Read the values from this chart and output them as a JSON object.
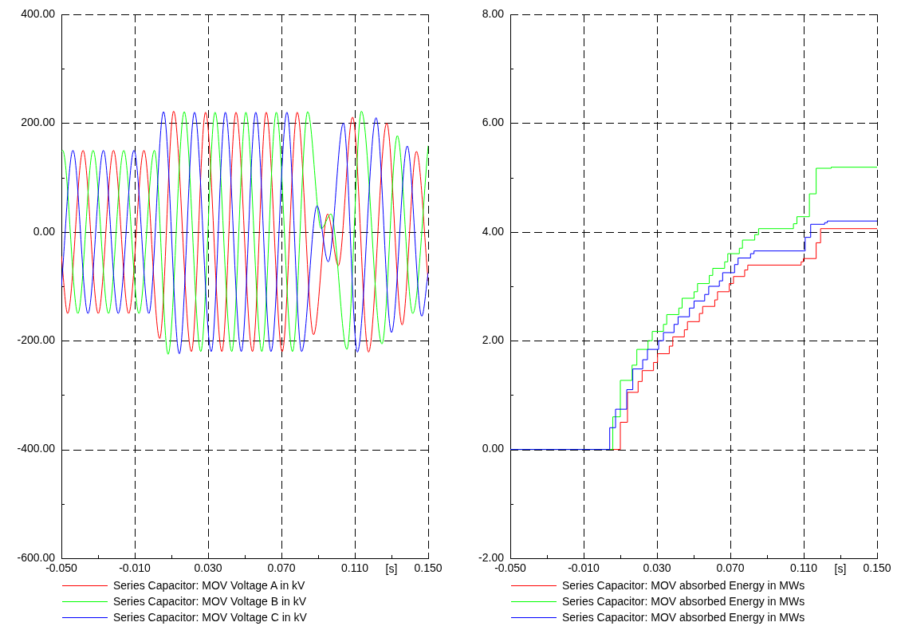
{
  "chart_data": [
    {
      "type": "line",
      "xlabel": "[s]",
      "xlim": [
        -0.05,
        0.15
      ],
      "xticks": [
        {
          "value": -0.05,
          "label": "-0.050"
        },
        {
          "value": -0.03,
          "label": null
        },
        {
          "value": -0.01,
          "label": "-0.010"
        },
        {
          "value": 0.01,
          "label": null
        },
        {
          "value": 0.03,
          "label": "0.030"
        },
        {
          "value": 0.05,
          "label": null
        },
        {
          "value": 0.07,
          "label": "0.070"
        },
        {
          "value": 0.09,
          "label": null
        },
        {
          "value": 0.11,
          "label": "0.110"
        },
        {
          "value": 0.13,
          "label": null
        },
        {
          "value": 0.15,
          "label": "0.150"
        }
      ],
      "ylim": [
        -600,
        400
      ],
      "yticks": [
        {
          "value": -600,
          "label": "-600.00"
        },
        {
          "value": -500,
          "label": null
        },
        {
          "value": -400,
          "label": "-400.00"
        },
        {
          "value": -300,
          "label": null
        },
        {
          "value": -200,
          "label": "-200.00"
        },
        {
          "value": -100,
          "label": null
        },
        {
          "value": 0,
          "label": "0.00"
        },
        {
          "value": 100,
          "label": null
        },
        {
          "value": 200,
          "label": "200.00"
        },
        {
          "value": 300,
          "label": null
        },
        {
          "value": 400,
          "label": "400.00"
        }
      ],
      "grid": true,
      "legend": "bottom",
      "series": [
        {
          "name": "Series Capacitor: MOV Voltage A in kV",
          "color": "#ff0000",
          "x": [
            -0.05,
            -0.0466,
            -0.0382,
            -0.0299,
            -0.0216,
            -0.0133,
            -0.005,
            0.0036,
            0.0112,
            0.0209,
            0.0286,
            0.0375,
            0.0452,
            0.0542,
            0.0617,
            0.0704,
            0.0786,
            0.0875,
            0.0952,
            0.101,
            0.1088,
            0.1175,
            0.1274,
            0.1358,
            0.1436,
            0.15
          ],
          "values": [
            -45,
            -150,
            150,
            -150,
            150,
            -150,
            150,
            -196,
            222,
            -220,
            220,
            -220,
            220,
            -220,
            220,
            -220,
            220,
            -189,
            33,
            -62,
            211,
            -221,
            200,
            -171,
            148,
            -90
          ]
        },
        {
          "name": "Series Capacitor: MOV Voltage B in kV",
          "color": "#00ff00",
          "x": [
            -0.05,
            -0.0493,
            -0.041,
            -0.0327,
            -0.0243,
            -0.016,
            -0.0077,
            0.0007,
            0.0082,
            0.017,
            0.026,
            0.0338,
            0.0429,
            0.0506,
            0.0593,
            0.0672,
            0.076,
            0.0843,
            0.0917,
            0.097,
            0.1057,
            0.1136,
            0.1248,
            0.1332,
            0.1416,
            0.15
          ],
          "values": [
            148,
            150,
            -150,
            150,
            -150,
            150,
            -150,
            150,
            -225,
            221,
            -220,
            220,
            -220,
            220,
            -220,
            220,
            -220,
            221,
            6,
            33,
            -216,
            222,
            -206,
            177,
            -150,
            158
          ]
        },
        {
          "name": "Series Capacitor: MOV Voltage C in kV",
          "color": "#0000ff",
          "x": [
            -0.05,
            -0.0437,
            -0.0355,
            -0.0271,
            -0.019,
            -0.0104,
            -0.0023,
            0.0057,
            0.0143,
            0.0226,
            0.0317,
            0.0394,
            0.0481,
            0.056,
            0.0643,
            0.073,
            0.081,
            0.0894,
            0.0955,
            0.1038,
            0.1114,
            0.1216,
            0.13,
            0.1386,
            0.1465,
            0.15
          ],
          "values": [
            -100,
            150,
            -150,
            150,
            -150,
            150,
            -150,
            221,
            -224,
            220,
            -220,
            220,
            -220,
            220,
            -220,
            220,
            -220,
            48,
            -55,
            200,
            -221,
            210,
            -185,
            158,
            -155,
            -75
          ]
        }
      ]
    },
    {
      "type": "step",
      "xlabel": "[s]",
      "xlim": [
        -0.05,
        0.15
      ],
      "xticks": [
        {
          "value": -0.05,
          "label": "-0.050"
        },
        {
          "value": -0.03,
          "label": null
        },
        {
          "value": -0.01,
          "label": "-0.010"
        },
        {
          "value": 0.01,
          "label": null
        },
        {
          "value": 0.03,
          "label": "0.030"
        },
        {
          "value": 0.05,
          "label": null
        },
        {
          "value": 0.07,
          "label": "0.070"
        },
        {
          "value": 0.09,
          "label": null
        },
        {
          "value": 0.11,
          "label": "0.110"
        },
        {
          "value": 0.13,
          "label": null
        },
        {
          "value": 0.15,
          "label": "0.150"
        }
      ],
      "ylim": [
        -2,
        8
      ],
      "yticks": [
        {
          "value": -2,
          "label": "-2.00"
        },
        {
          "value": -1,
          "label": null
        },
        {
          "value": 0,
          "label": "0.00"
        },
        {
          "value": 1,
          "label": null
        },
        {
          "value": 2,
          "label": "2.00"
        },
        {
          "value": 3,
          "label": null
        },
        {
          "value": 4,
          "label": "4.00"
        },
        {
          "value": 5,
          "label": null
        },
        {
          "value": 6,
          "label": "6.00"
        },
        {
          "value": 7,
          "label": null
        },
        {
          "value": 8,
          "label": "8.00"
        }
      ],
      "grid": true,
      "legend": "bottom",
      "series": [
        {
          "name": "Series Capacitor: MOV absorbed Energy in MWs",
          "color": "#ff0000",
          "x": [
            -0.05,
            0.01,
            0.0139,
            0.0197,
            0.0219,
            0.0281,
            0.0303,
            0.0367,
            0.0386,
            0.0449,
            0.0466,
            0.0531,
            0.0549,
            0.0615,
            0.063,
            0.0694,
            0.0717,
            0.0778,
            0.0795,
            0.1086,
            0.1098,
            0.1168,
            0.1192,
            0.15
          ],
          "values": [
            0,
            0.5,
            1.05,
            1.25,
            1.45,
            1.6,
            1.76,
            1.9,
            2.07,
            2.2,
            2.35,
            2.5,
            2.63,
            2.75,
            2.9,
            3.05,
            3.18,
            3.3,
            3.39,
            3.45,
            3.51,
            3.8,
            4.06,
            4.06
          ]
        },
        {
          "name": "Series Capacitor: MOV absorbed Energy in MWs",
          "color": "#00ff00",
          "x": [
            -0.05,
            0.0059,
            0.01,
            0.0164,
            0.019,
            0.0251,
            0.0274,
            0.0335,
            0.0353,
            0.0419,
            0.0437,
            0.0502,
            0.0521,
            0.0585,
            0.0604,
            0.0669,
            0.0686,
            0.0749,
            0.0766,
            0.0833,
            0.0854,
            0.1044,
            0.1063,
            0.1131,
            0.1168,
            0.125,
            0.15
          ],
          "values": [
            0,
            0.6,
            1.27,
            1.55,
            1.84,
            2,
            2.17,
            2.3,
            2.48,
            2.6,
            2.78,
            2.9,
            3.05,
            3.2,
            3.33,
            3.45,
            3.6,
            3.7,
            3.85,
            3.95,
            4.06,
            4.15,
            4.28,
            4.7,
            5.17,
            5.19,
            5.19
          ]
        },
        {
          "name": "Series Capacitor: MOV absorbed Energy in MWs",
          "color": "#0000ff",
          "x": [
            -0.05,
            0.0042,
            0.0074,
            0.0135,
            0.0168,
            0.0222,
            0.0248,
            0.0309,
            0.0335,
            0.0393,
            0.0415,
            0.0477,
            0.0502,
            0.056,
            0.0582,
            0.064,
            0.0658,
            0.0723,
            0.0742,
            0.081,
            0.0829,
            0.1108,
            0.1138,
            0.1214,
            0.1229,
            0.15
          ],
          "values": [
            0,
            0.4,
            0.74,
            1.1,
            1.48,
            1.65,
            1.84,
            2,
            2.15,
            2.3,
            2.44,
            2.6,
            2.73,
            2.85,
            3,
            3.1,
            3.25,
            3.4,
            3.52,
            3.6,
            3.65,
            3.9,
            4.14,
            4.17,
            4.2,
            4.2
          ]
        }
      ]
    }
  ]
}
